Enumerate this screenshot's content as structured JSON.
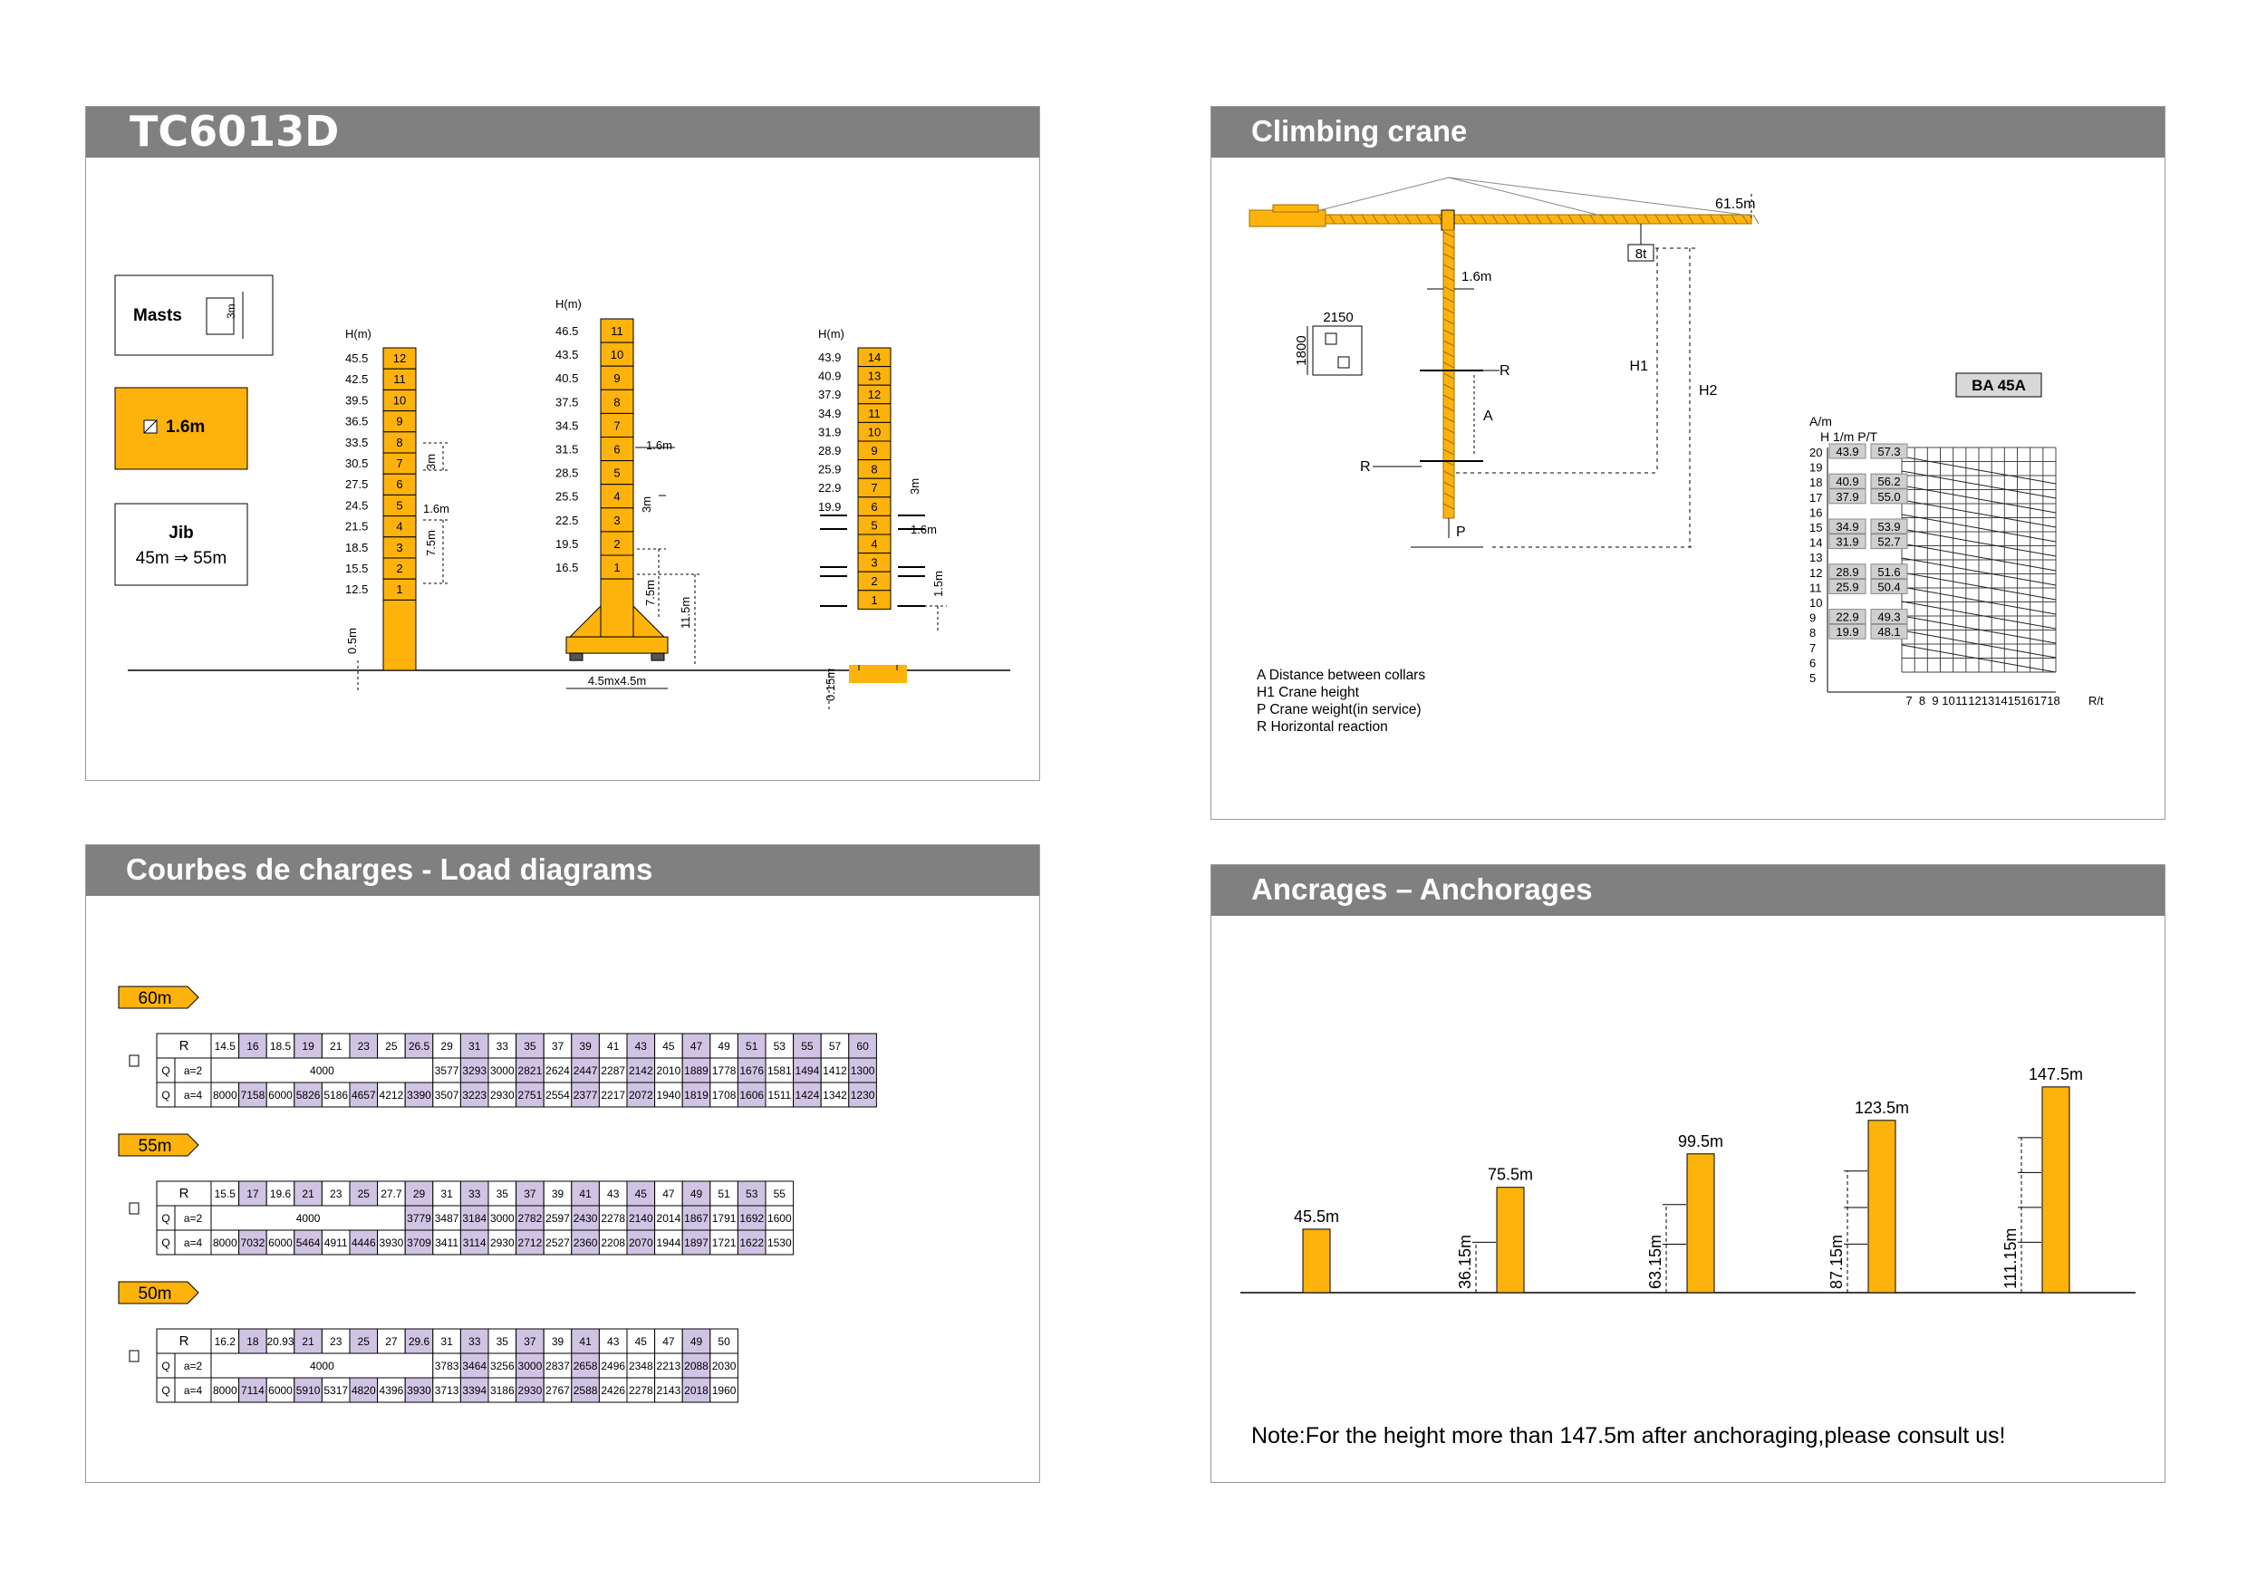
{
  "colors": {
    "accent": "#FDB30B",
    "header": "#808080",
    "highlight": "#D0C4E4",
    "bar": "#FDB30B"
  },
  "slide1": {
    "title": "TC6013D",
    "masts_label": "Masts",
    "masts_dim": "3m",
    "mast_size": "1.6m",
    "mast_icon": "square-section-icon",
    "jib_label": "Jib",
    "jib_range": "45m ⇒ 55m",
    "h_label": "H(m)",
    "d1": {
      "heights": [
        "45.5",
        "42.5",
        "39.5",
        "36.5",
        "33.5",
        "30.5",
        "27.5",
        "24.5",
        "21.5",
        "18.5",
        "15.5",
        "12.5"
      ],
      "numbers": [
        "12",
        "11",
        "10",
        "9",
        "8",
        "7",
        "6",
        "5",
        "4",
        "3",
        "2",
        "1"
      ],
      "dim_3m": "3m",
      "dim_16": "1.6m",
      "dim_75": "7.5m",
      "dim_05": "0.5m"
    },
    "d2": {
      "heights": [
        "46.5",
        "43.5",
        "40.5",
        "37.5",
        "34.5",
        "31.5",
        "28.5",
        "25.5",
        "22.5",
        "19.5",
        "16.5"
      ],
      "numbers": [
        "11",
        "10",
        "9",
        "8",
        "7",
        "6",
        "5",
        "4",
        "3",
        "2",
        "1"
      ],
      "dim_16": "1.6m",
      "dim_3m": "3m",
      "dim_75": "7.5m",
      "dim_115": "11.5m",
      "base": "4.5mx4.5m"
    },
    "d3": {
      "heights": [
        "43.9",
        "40.9",
        "37.9",
        "34.9",
        "31.9",
        "28.9",
        "25.9",
        "22.9",
        "19.9"
      ],
      "numbers": [
        "14",
        "13",
        "12",
        "11",
        "10",
        "9",
        "8",
        "7",
        "6",
        "5",
        "4",
        "3",
        "2",
        "1"
      ],
      "dim_3m": "3m",
      "dim_16": "1.6m",
      "dim_15": "1.5m",
      "dim_015": "0.15m"
    }
  },
  "slide2": {
    "title": "Climbing crane",
    "jib_len": "61.5m",
    "load": "8t",
    "mast": "1.6m",
    "frame_w": "2150",
    "frame_h": "1800",
    "lbl_R": "R",
    "lbl_A": "A",
    "lbl_P": "P",
    "lbl_H1": "H1",
    "lbl_H2": "H2",
    "legend": [
      "A   Distance between collars",
      "H1 Crane height",
      "P   Crane weight(in service)",
      "R   Horizontal reaction"
    ],
    "ba_label": "BA 45A",
    "am_label": "A/m",
    "col_label": "H 1/m P/T",
    "rt_label": "R/t",
    "y_ticks": [
      "20",
      "19",
      "18",
      "17",
      "16",
      "15",
      "14",
      "13",
      "12",
      "11",
      "10",
      "9",
      "8",
      "7",
      "6",
      "5"
    ],
    "x_ticks": [
      "7",
      "8",
      "9",
      "10",
      "11",
      "12",
      "13",
      "14",
      "15",
      "16",
      "17",
      "18"
    ],
    "chart_data": {
      "type": "table",
      "columns": [
        "H 1/m",
        "P/T"
      ],
      "rows": [
        {
          "A": 20,
          "H": "43.9",
          "P": "57.3"
        },
        {
          "A": 18,
          "H": "40.9",
          "P": "56.2"
        },
        {
          "A": 17,
          "H": "37.9",
          "P": "55.0"
        },
        {
          "A": 15,
          "H": "34.9",
          "P": "53.9"
        },
        {
          "A": 14,
          "H": "31.9",
          "P": "52.7"
        },
        {
          "A": 12,
          "H": "28.9",
          "P": "51.6"
        },
        {
          "A": 11,
          "H": "25.9",
          "P": "50.4"
        },
        {
          "A": 9,
          "H": "22.9",
          "P": "49.3"
        },
        {
          "A": 8,
          "H": "19.9",
          "P": "48.1"
        }
      ]
    }
  },
  "slide3": {
    "title": "Courbes de charges - Load diagrams",
    "tables": [
      {
        "tag": "60m",
        "R": [
          "14.5",
          "16",
          "18.5",
          "19",
          "21",
          "23",
          "25",
          "26.5",
          "29",
          "31",
          "33",
          "35",
          "37",
          "39",
          "41",
          "43",
          "45",
          "47",
          "49",
          "51",
          "53",
          "55",
          "57",
          "60"
        ],
        "hl": [
          1,
          3,
          5,
          7,
          9,
          11,
          13,
          15,
          17,
          19,
          21,
          23
        ],
        "a2_span": 8,
        "a2_span_val": "4000",
        "a2": [
          "3577",
          "3293",
          "3000",
          "2821",
          "2624",
          "2447",
          "2287",
          "2142",
          "2010",
          "1889",
          "1778",
          "1676",
          "1581",
          "1494",
          "1412",
          "1300"
        ],
        "a4": [
          "8000",
          "7158",
          "6000",
          "5826",
          "5186",
          "4657",
          "4212",
          "3390",
          "3507",
          "3223",
          "2930",
          "2751",
          "2554",
          "2377",
          "2217",
          "2072",
          "1940",
          "1819",
          "1708",
          "1606",
          "1511",
          "1424",
          "1342",
          "1230"
        ]
      },
      {
        "tag": "55m",
        "R": [
          "15.5",
          "17",
          "19.6",
          "21",
          "23",
          "25",
          "27.7",
          "29",
          "31",
          "33",
          "35",
          "37",
          "39",
          "41",
          "43",
          "45",
          "47",
          "49",
          "51",
          "53",
          "55"
        ],
        "hl": [
          1,
          3,
          5,
          7,
          9,
          11,
          13,
          15,
          17,
          19
        ],
        "a2_span": 7,
        "a2_span_val": "4000",
        "a2": [
          "3779",
          "3487",
          "3184",
          "3000",
          "2782",
          "2597",
          "2430",
          "2278",
          "2140",
          "2014",
          "1867",
          "1791",
          "1692",
          "1600"
        ],
        "a4": [
          "8000",
          "7032",
          "6000",
          "5464",
          "4911",
          "4446",
          "3930",
          "3709",
          "3411",
          "3114",
          "2930",
          "2712",
          "2527",
          "2360",
          "2208",
          "2070",
          "1944",
          "1897",
          "1721",
          "1622",
          "1530"
        ]
      },
      {
        "tag": "50m",
        "R": [
          "16.2",
          "18",
          "20.93",
          "21",
          "23",
          "25",
          "27",
          "29.6",
          "31",
          "33",
          "35",
          "37",
          "39",
          "41",
          "43",
          "45",
          "47",
          "49",
          "50"
        ],
        "hl": [
          1,
          3,
          5,
          7,
          9,
          11,
          13,
          17
        ],
        "a2_span": 8,
        "a2_span_val": "4000",
        "a2": [
          "3783",
          "3464",
          "3256",
          "3000",
          "2837",
          "2658",
          "2496",
          "2348",
          "2213",
          "2088",
          "2030"
        ],
        "a4": [
          "8000",
          "7114",
          "6000",
          "5910",
          "5317",
          "4820",
          "4396",
          "3930",
          "3713",
          "3394",
          "3186",
          "2930",
          "2767",
          "2588",
          "2426",
          "2278",
          "2143",
          "2018",
          "1960"
        ]
      }
    ],
    "row_R": "R",
    "row_Q": "Q",
    "a2_label": "a=2",
    "a4_label": "a=4"
  },
  "slide4": {
    "title": "Ancrages – Anchorages",
    "note": "Note:For the height more than 147.5m after anchoraging,please consult us!",
    "chart_data": {
      "type": "bar",
      "categories": [
        "45.5m",
        "75.5m",
        "99.5m",
        "123.5m",
        "147.5m"
      ],
      "values": [
        45.5,
        75.5,
        99.5,
        123.5,
        147.5
      ],
      "anchor_heights": [
        "",
        "36.15m",
        "63.15m",
        "87.15m",
        "111.15m"
      ],
      "anchors": [
        0,
        1,
        2,
        3,
        4
      ]
    }
  }
}
